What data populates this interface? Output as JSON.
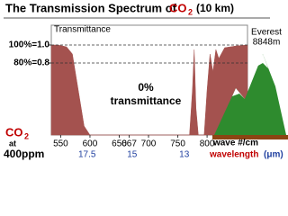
{
  "chart_data": {
    "type": "area",
    "title": "The Transmission Spectrum of",
    "title_gas": "CO",
    "title_gas_sub": "2",
    "title_suffix": "(10 km)",
    "y_label": "Transmittance",
    "annotation": [
      "0%",
      "transmittance"
    ],
    "x_label": "wave #/cm",
    "x2_label": "wavelength",
    "x2_unit": "(μm)",
    "concentration": {
      "gas": "CO",
      "sub": "2",
      "at": "at",
      "amount": "400ppm"
    },
    "mountain": {
      "name": "Everest",
      "height": "8848m"
    },
    "x": [
      534,
      545,
      560,
      570,
      580,
      590,
      600,
      700,
      770,
      775,
      778,
      781,
      785,
      795,
      800,
      805,
      810,
      815,
      820,
      830,
      850,
      869
    ],
    "values": [
      1.0,
      1.0,
      0.98,
      0.9,
      0.5,
      0.1,
      0,
      0,
      0,
      0.5,
      0.95,
      0.3,
      0,
      0,
      0.5,
      0.9,
      0.7,
      0.95,
      0.85,
      0.97,
      0.99,
      1.0
    ],
    "color": "#a4524f",
    "xlim": [
      534,
      869
    ],
    "ylim": [
      0,
      1.22
    ],
    "xticks": [
      550,
      600,
      650,
      667,
      700,
      750,
      800
    ],
    "x2ticks": [
      {
        "value": 595,
        "label": "17.5"
      },
      {
        "value": 672,
        "label": "15"
      },
      {
        "value": 761,
        "label": "13"
      }
    ],
    "yticks": [
      {
        "value": 1.0,
        "label": "100%=1.0"
      },
      {
        "value": 0.8,
        "label": "80%=0.8"
      }
    ],
    "grid": true
  }
}
